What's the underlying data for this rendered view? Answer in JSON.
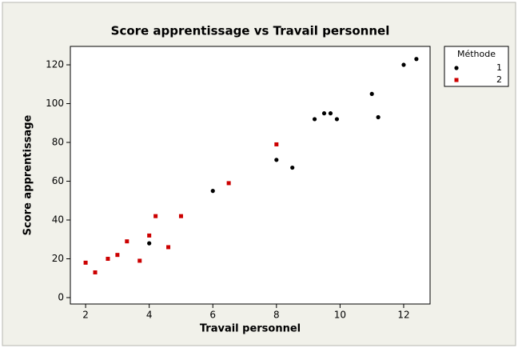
{
  "chart_data": {
    "type": "scatter",
    "title": "Score apprentissage vs Travail personnel",
    "x_label": "Travail personnel",
    "y_label": "Score apprentissage",
    "legend_title": "Méthode",
    "legend": "right",
    "xlim": [
      1.52,
      12.83
    ],
    "xticks": [
      2,
      4,
      6,
      8,
      10,
      12
    ],
    "ylim": [
      -3.3,
      129.5
    ],
    "yticks": [
      0,
      20,
      40,
      60,
      80,
      100,
      120
    ],
    "series": [
      {
        "name": "1",
        "color": "#000000",
        "marker": "circle",
        "x": [
          4,
          6,
          8,
          8.5,
          9.2,
          9.5,
          9.7,
          9.9,
          11,
          11.2,
          12,
          12.4
        ],
        "values": [
          28,
          55,
          71,
          67,
          92,
          95,
          95,
          92,
          105,
          93,
          120,
          123
        ]
      },
      {
        "name": "2",
        "color": "#cc0000",
        "marker": "square",
        "x": [
          2,
          2.3,
          2.7,
          3,
          3.3,
          3.7,
          4,
          4.2,
          4.6,
          5,
          6.5,
          8
        ],
        "values": [
          18,
          13,
          20,
          22,
          29,
          19,
          32,
          42,
          26,
          42,
          59,
          79
        ]
      }
    ]
  }
}
